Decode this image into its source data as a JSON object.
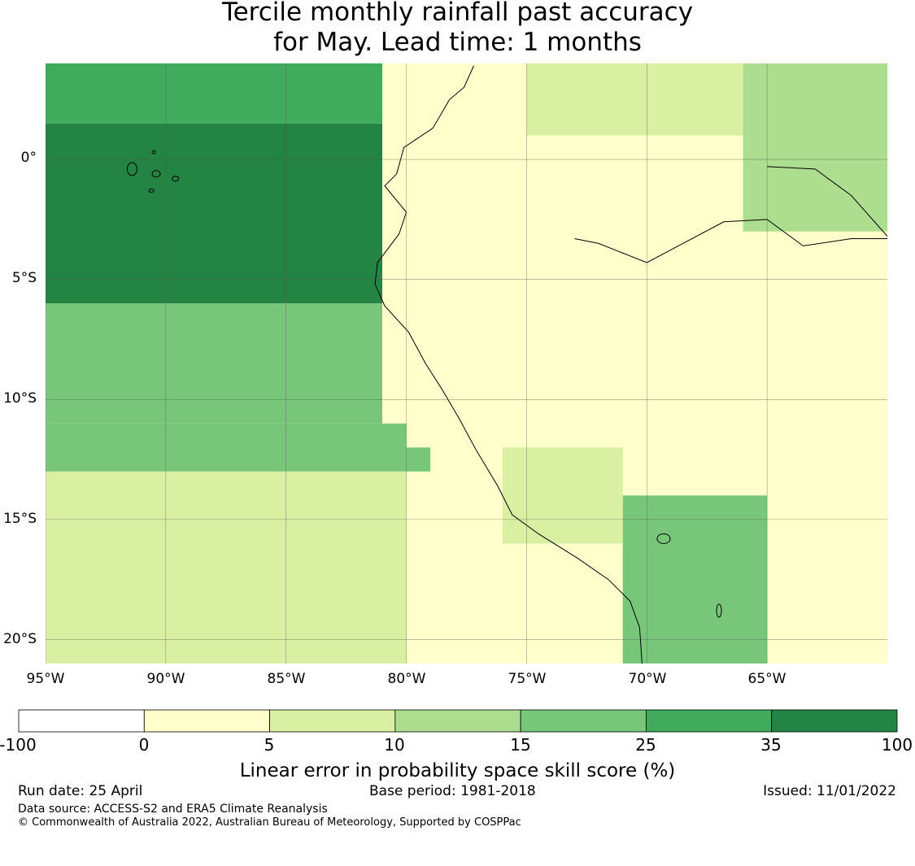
{
  "title": {
    "line1": "Tercile monthly rainfall past accuracy",
    "line2": "for May. Lead time: 1 months"
  },
  "map": {
    "lat_labels": [
      "0°",
      "5°S",
      "10°S",
      "15°S",
      "20°S"
    ],
    "lon_labels": [
      "95°W",
      "90°W",
      "85°W",
      "80°W",
      "75°W",
      "70°W",
      "65°W"
    ],
    "extent": {
      "lon_min": -95,
      "lon_max": -60,
      "lat_min": -21,
      "lat_max": 4
    }
  },
  "chart_data": {
    "type": "heatmap",
    "levels": [
      -100,
      0,
      5,
      10,
      15,
      25,
      35,
      100
    ],
    "colors": [
      "#ffffff",
      "#ffffcc",
      "#d9f0a3",
      "#addd8e",
      "#78c679",
      "#41ab5d",
      "#238443"
    ],
    "xlabel": "",
    "ylabel": "",
    "xlim": [
      -95,
      -60
    ],
    "ylim": [
      -21,
      4
    ],
    "regions": [
      {
        "lon_min": -95,
        "lon_max": -81,
        "lat_min": -6,
        "lat_max": 1.5,
        "value": 40
      },
      {
        "lon_min": -95,
        "lon_max": -81,
        "lat_min": 1.5,
        "lat_max": 4,
        "value": 30
      },
      {
        "lon_min": -95,
        "lon_max": -81,
        "lat_min": -11,
        "lat_max": -6,
        "value": 20
      },
      {
        "lon_min": -95,
        "lon_max": -79,
        "lat_min": -13,
        "lat_max": -11,
        "value": 18
      },
      {
        "lon_min": -95,
        "lon_max": -80,
        "lat_min": -21,
        "lat_max": -13,
        "value": 7
      },
      {
        "lon_min": -80,
        "lon_max": -60,
        "lat_min": -12,
        "lat_max": 1,
        "value": 2
      },
      {
        "lon_min": -66,
        "lon_max": -60,
        "lat_min": -3,
        "lat_max": 4,
        "value": 12
      },
      {
        "lon_min": -75,
        "lon_max": -66,
        "lat_min": 1,
        "lat_max": 4,
        "value": 8
      },
      {
        "lon_min": -71,
        "lon_max": -65,
        "lat_min": -21,
        "lat_max": -14,
        "value": 20
      },
      {
        "lon_min": -76,
        "lon_max": -71,
        "lat_min": -16,
        "lat_max": -12,
        "value": 9
      }
    ]
  },
  "colorbar": {
    "ticks": [
      "-100",
      "0",
      "5",
      "10",
      "15",
      "25",
      "35",
      "100"
    ],
    "title": "Linear error in probability space skill score (%)"
  },
  "footer": {
    "run_date": "Run date: 25 April",
    "base_period": "Base period: 1981-2018",
    "issued": "Issued: 11/01/2022",
    "data_source": "Data source: ACCESS-S2 and ERA5 Climate Reanalysis",
    "copyright": "© Commonwealth of Australia 2022, Australian Bureau of Meteorology, Supported by COSPPac"
  }
}
